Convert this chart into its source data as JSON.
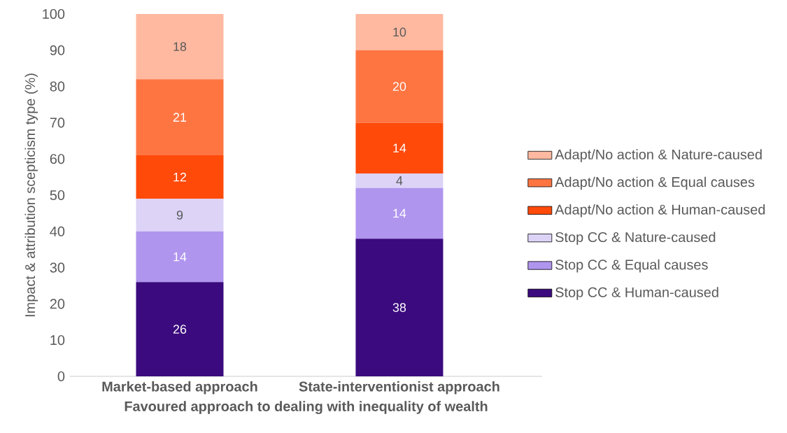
{
  "chart_data": {
    "type": "bar",
    "stacked": true,
    "xlabel": "Favoured approach to dealing with inequality of wealth",
    "ylabel": "Impact & attribution scepticism type (%)",
    "categories": [
      "Market-based approach",
      "State-interventionist approach"
    ],
    "series": [
      {
        "name": "Stop CC & Human-caused",
        "color": "#3b0a7e",
        "values": [
          26,
          38
        ]
      },
      {
        "name": "Stop CC & Equal causes",
        "color": "#b095ee",
        "values": [
          14,
          14
        ]
      },
      {
        "name": "Stop CC & Nature-caused",
        "color": "#dcd3f7",
        "values": [
          9,
          4
        ]
      },
      {
        "name": "Adapt/No action & Human-caused",
        "color": "#ff4a0a",
        "values": [
          12,
          14
        ]
      },
      {
        "name": "Adapt/No action & Equal causes",
        "color": "#ff7542",
        "values": [
          21,
          20
        ]
      },
      {
        "name": "Adapt/No action & Nature-caused",
        "color": "#ffb9a0",
        "values": [
          18,
          10
        ]
      }
    ],
    "ylim": [
      0,
      100
    ],
    "yticks": [
      0,
      10,
      20,
      30,
      40,
      50,
      60,
      70,
      80,
      90,
      100
    ],
    "data_labels": true,
    "legend": "right"
  }
}
